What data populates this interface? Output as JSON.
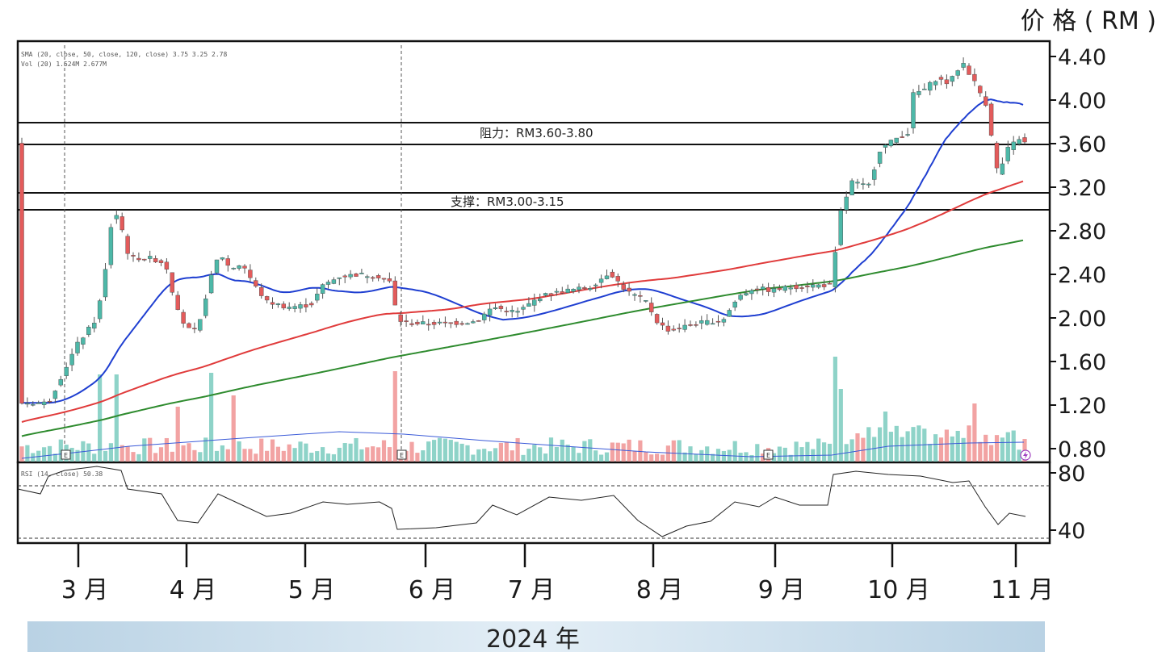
{
  "chart_data": {
    "type": "candlestick",
    "unit_label": "价 格 ( RM )",
    "year_label": "2024 年",
    "x_month_labels": [
      "3 月",
      "4 月",
      "5 月",
      "6 月",
      "7 月",
      "8 月",
      "9 月",
      "10 月",
      "11 月"
    ],
    "price_ticks": [
      "4.40",
      "4.00",
      "3.60",
      "3.20",
      "2.80",
      "2.40",
      "2.00",
      "1.60",
      "1.20",
      "0.80"
    ],
    "price_tick_values": [
      4.4,
      4.0,
      3.6,
      3.2,
      2.8,
      2.4,
      2.0,
      1.6,
      1.2,
      0.8
    ],
    "rsi_ticks": [
      "80",
      "40"
    ],
    "legend": {
      "line1": "SMA (20, close, 50, close, 120, close)  3.75  3.25  2.78",
      "line2": "Vol (20)  1.524M  2.677M",
      "rsi": "RSI (14, close) 50.38"
    },
    "resistance_zone": {
      "label": "阻力：RM3.60-3.80",
      "low": 3.6,
      "high": 3.8
    },
    "support_zone": {
      "label": "支撑：RM3.00-3.15",
      "low": 3.0,
      "high": 3.15
    },
    "colors": {
      "up": "#4db8a8",
      "down": "#e35b5b",
      "vol_up": "#8ed3c8",
      "vol_down": "#f2a3a3",
      "sma_short": "#1f3fd1",
      "sma_mid": "#e03b3b",
      "sma_long": "#2e8b2e",
      "year_bar": "#cfe0ec"
    },
    "key_prices": {
      "start": 1.22,
      "march_peak": 3.15,
      "april_low": 1.85,
      "june_flat": 1.95,
      "september_breakout": 3.0,
      "october_high": 4.4,
      "latest_close": 3.6
    },
    "sma_short_end": 3.75,
    "sma_mid_end": 3.25,
    "sma_long_end": 2.78,
    "rsi_latest": 50.38
  }
}
